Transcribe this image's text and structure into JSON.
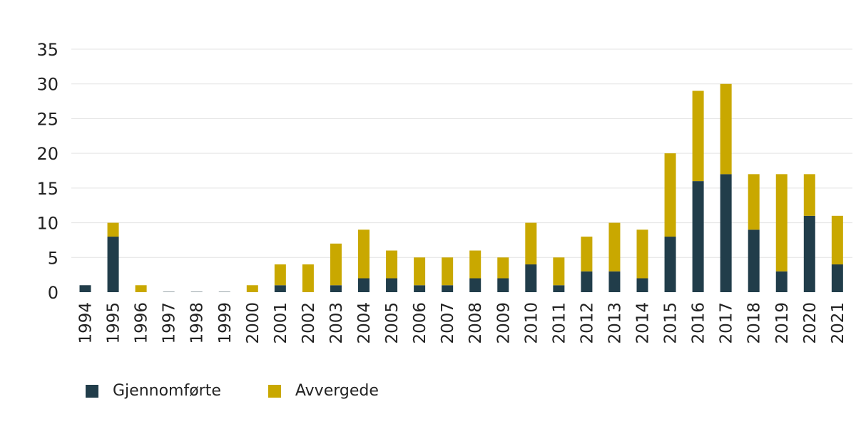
{
  "chart_data": {
    "type": "bar",
    "stacked": true,
    "categories": [
      "1994",
      "1995",
      "1996",
      "1997",
      "1998",
      "1999",
      "2000",
      "2001",
      "2002",
      "2003",
      "2004",
      "2005",
      "2006",
      "2007",
      "2008",
      "2009",
      "2010",
      "2011",
      "2012",
      "2013",
      "2014",
      "2015",
      "2016",
      "2017",
      "2018",
      "2019",
      "2020",
      "2021"
    ],
    "series": [
      {
        "name": "Gjennomførte",
        "color": "#213d4a",
        "values": [
          1,
          8,
          0,
          0,
          0,
          0,
          0,
          1,
          0,
          1,
          2,
          2,
          1,
          1,
          2,
          2,
          4,
          1,
          3,
          3,
          2,
          8,
          16,
          17,
          9,
          3,
          11,
          4
        ]
      },
      {
        "name": "Avvergede",
        "color": "#c9a800",
        "values": [
          0,
          2,
          1,
          0,
          0,
          0,
          1,
          3,
          4,
          6,
          7,
          4,
          4,
          4,
          4,
          3,
          6,
          4,
          5,
          7,
          7,
          12,
          13,
          13,
          8,
          14,
          6,
          7
        ]
      }
    ],
    "ylim": [
      0,
      35
    ],
    "yticks": [
      "0",
      "5",
      "10",
      "15",
      "20",
      "25",
      "30",
      "35"
    ],
    "grid": true,
    "legend_position": "bottom-left"
  }
}
